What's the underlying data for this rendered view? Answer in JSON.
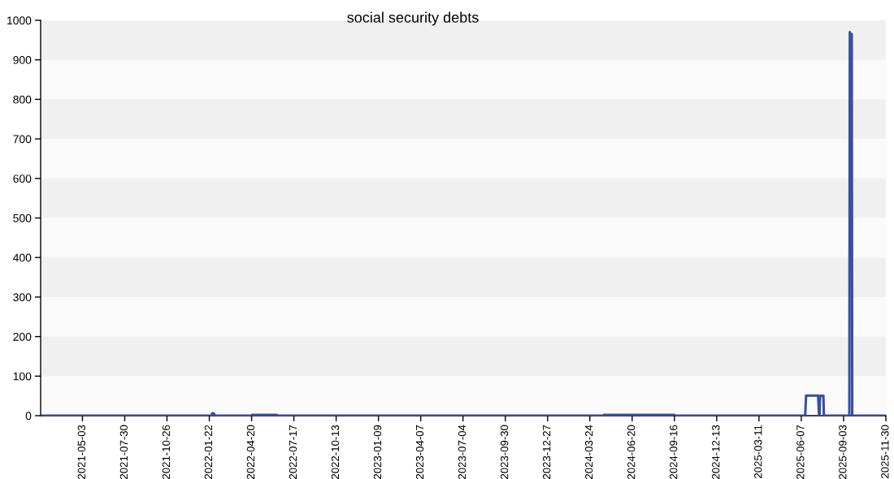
{
  "chart_data": {
    "type": "line",
    "title": "social security debts",
    "series": [
      {
        "color": "#3a4f9e",
        "x": [
          "2021-02-05",
          "2022-01-27",
          "2022-01-28",
          "2022-02-01",
          "2022-02-02",
          "2022-04-20",
          "2022-04-21",
          "2022-06-12",
          "2022-06-13",
          "2024-04-21",
          "2024-04-22",
          "2024-09-16",
          "2024-09-17",
          "2025-06-15",
          "2025-06-17",
          "2025-07-12",
          "2025-07-14",
          "2025-07-15",
          "2025-07-16",
          "2025-07-23",
          "2025-07-24",
          "2025-09-15",
          "2025-09-16",
          "2025-09-17",
          "2025-09-20",
          "2025-09-21",
          "2025-11-30"
        ],
        "values": [
          0,
          0,
          6,
          5,
          0,
          0,
          2,
          2,
          0,
          0,
          2,
          2,
          0,
          0,
          51,
          51,
          0,
          0,
          50,
          50,
          0,
          0,
          970,
          965,
          965,
          0,
          0
        ]
      }
    ],
    "xlim": [
      "2021-02-05",
      "2025-11-30"
    ],
    "xticks": [
      "2021-05-03",
      "2021-07-30",
      "2021-10-26",
      "2022-01-22",
      "2022-04-20",
      "2022-07-17",
      "2022-10-13",
      "2023-01-09",
      "2023-04-07",
      "2023-07-04",
      "2023-09-30",
      "2023-12-27",
      "2024-03-24",
      "2024-06-20",
      "2024-09-16",
      "2024-12-13",
      "2025-03-11",
      "2025-06-07",
      "2025-09-03",
      "2025-11-30"
    ],
    "ylim": [
      0,
      1000
    ],
    "yticks": [
      0,
      100,
      200,
      300,
      400,
      500,
      600,
      700,
      800,
      900,
      1000
    ],
    "bands": [
      {
        "axis": "y",
        "from": 100,
        "to": 200,
        "color": "#f0f0f0"
      },
      {
        "axis": "y",
        "from": 300,
        "to": 400,
        "color": "#f0f0f0"
      },
      {
        "axis": "y",
        "from": 500,
        "to": 600,
        "color": "#f0f0f0"
      },
      {
        "axis": "y",
        "from": 700,
        "to": 800,
        "color": "#f0f0f0"
      },
      {
        "axis": "y",
        "from": 900,
        "to": 1000,
        "color": "#f0f0f0"
      }
    ],
    "line_style": "solid"
  }
}
